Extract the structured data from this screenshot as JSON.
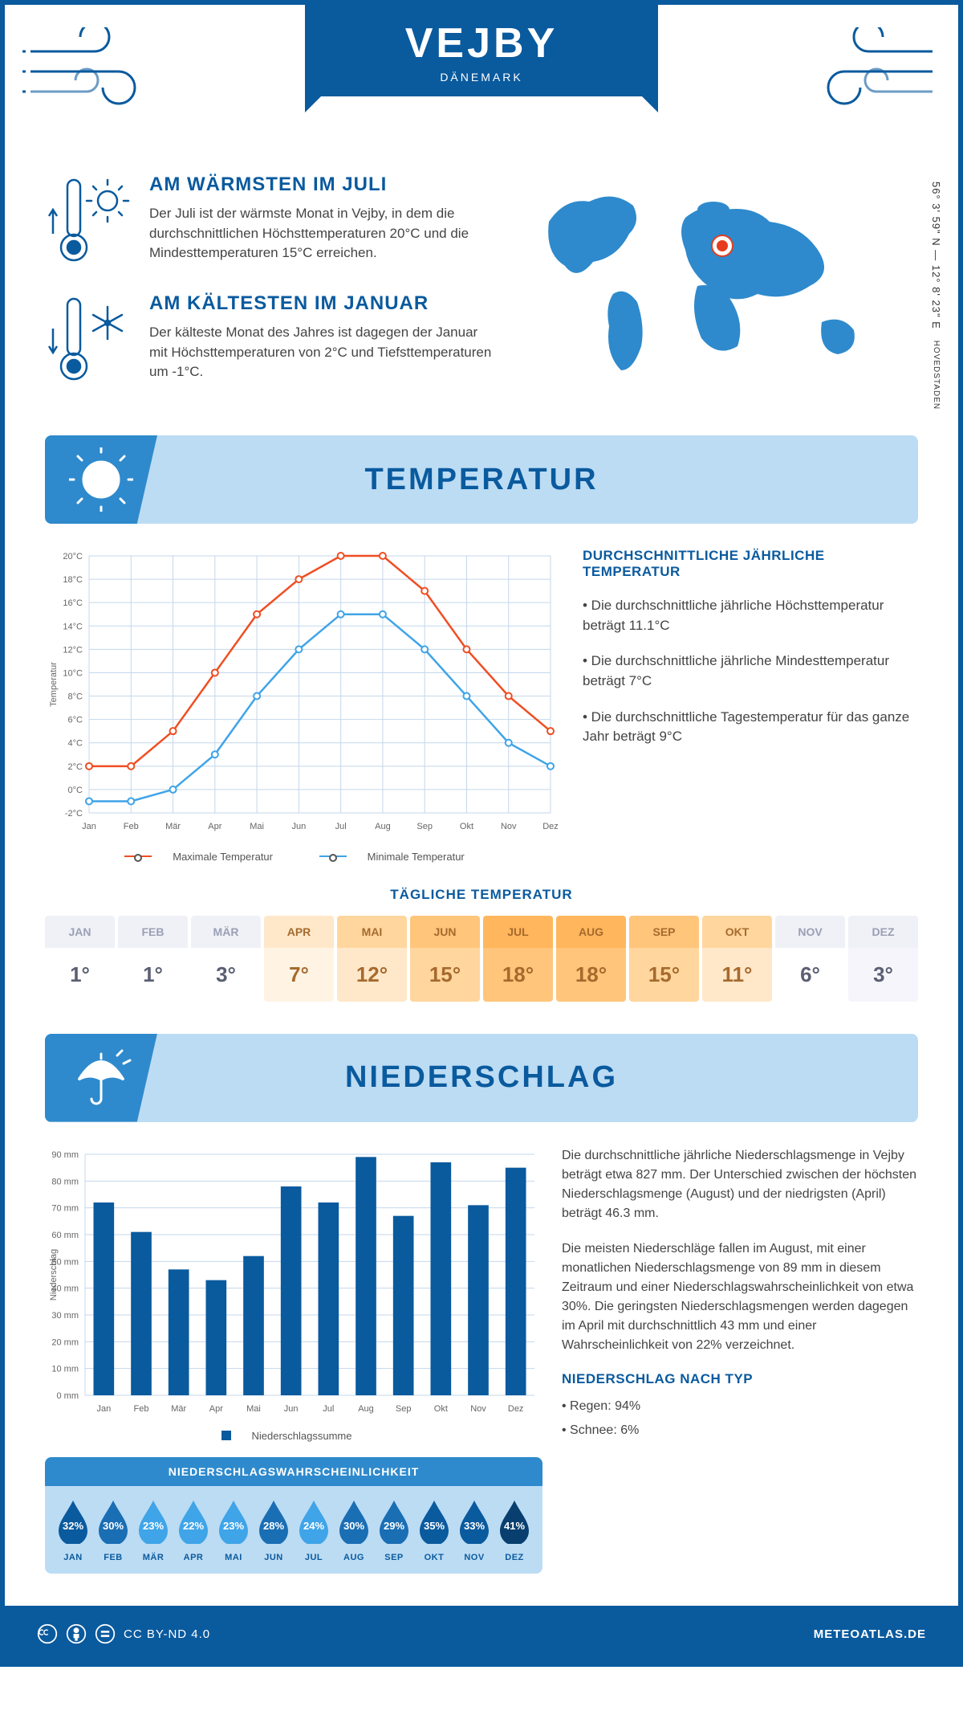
{
  "header": {
    "city": "VEJBY",
    "country": "DÄNEMARK"
  },
  "coords": {
    "line1": "56° 3' 59\" N — 12° 8' 23\" E",
    "region": "HOVEDSTADEN"
  },
  "warm": {
    "title": "AM WÄRMSTEN IM JULI",
    "text": "Der Juli ist der wärmste Monat in Vejby, in dem die durchschnittlichen Höchsttemperaturen 20°C und die Mindesttemperaturen 15°C erreichen."
  },
  "cold": {
    "title": "AM KÄLTESTEN IM JANUAR",
    "text": "Der kälteste Monat des Jahres ist dagegen der Januar mit Höchsttemperaturen von 2°C und Tiefsttemperaturen um -1°C."
  },
  "temp_section": {
    "title": "TEMPERATUR"
  },
  "temp_chart": {
    "type": "line",
    "months": [
      "Jan",
      "Feb",
      "Mär",
      "Apr",
      "Mai",
      "Jun",
      "Jul",
      "Aug",
      "Sep",
      "Okt",
      "Nov",
      "Dez"
    ],
    "max": {
      "label": "Maximale Temperatur",
      "color": "#f04e23",
      "values": [
        2,
        2,
        5,
        10,
        15,
        18,
        20,
        20,
        17,
        12,
        8,
        5
      ]
    },
    "min": {
      "label": "Minimale Temperatur",
      "color": "#3fa4e8",
      "values": [
        -1,
        -1,
        0,
        3,
        8,
        12,
        15,
        15,
        12,
        8,
        4,
        2
      ]
    },
    "ylim": [
      -2,
      20
    ],
    "ytick_step": 2,
    "ylabel": "Temperatur",
    "grid_color": "#c4d7eb",
    "bg": "#ffffff"
  },
  "temp_facts": {
    "title": "DURCHSCHNITTLICHE JÄHRLICHE TEMPERATUR",
    "items": [
      "• Die durchschnittliche jährliche Höchsttemperatur beträgt 11.1°C",
      "• Die durchschnittliche jährliche Mindesttemperatur beträgt 7°C",
      "• Die durchschnittliche Tagestemperatur für das ganze Jahr beträgt 9°C"
    ]
  },
  "daily": {
    "title": "TÄGLICHE TEMPERATUR",
    "months": [
      "JAN",
      "FEB",
      "MÄR",
      "APR",
      "MAI",
      "JUN",
      "JUL",
      "AUG",
      "SEP",
      "OKT",
      "NOV",
      "DEZ"
    ],
    "values": [
      "1°",
      "1°",
      "3°",
      "7°",
      "12°",
      "15°",
      "18°",
      "18°",
      "15°",
      "11°",
      "6°",
      "3°"
    ],
    "head_colors": [
      "#f0f1f7",
      "#f0f1f7",
      "#f0f1f7",
      "#ffe8ca",
      "#ffd69d",
      "#ffc57a",
      "#ffb65c",
      "#ffb65c",
      "#ffc57a",
      "#ffd69d",
      "#f0f1f7",
      "#f0f1f7"
    ],
    "body_colors": [
      "#ffffff",
      "#ffffff",
      "#ffffff",
      "#fff4e4",
      "#ffe8ca",
      "#ffd69d",
      "#ffc57a",
      "#ffc57a",
      "#ffd69d",
      "#ffe8ca",
      "#ffffff",
      "#f6f5fb"
    ],
    "text_color_head": "#9aa0b4",
    "text_color_warm": "#a66a2e"
  },
  "prec_section": {
    "title": "NIEDERSCHLAG"
  },
  "prec_chart": {
    "type": "bar",
    "months": [
      "Jan",
      "Feb",
      "Mär",
      "Apr",
      "Mai",
      "Jun",
      "Jul",
      "Aug",
      "Sep",
      "Okt",
      "Nov",
      "Dez"
    ],
    "values": [
      72,
      61,
      47,
      43,
      52,
      78,
      72,
      89,
      67,
      87,
      71,
      85
    ],
    "bar_color": "#0a5a9e",
    "ylim": [
      0,
      90
    ],
    "ytick_step": 10,
    "ylabel": "Niederschlag",
    "grid_color": "#c4d7eb",
    "legend": "Niederschlagssumme"
  },
  "prec_text": {
    "p1": "Die durchschnittliche jährliche Niederschlagsmenge in Vejby beträgt etwa 827 mm. Der Unterschied zwischen der höchsten Niederschlagsmenge (August) und der niedrigsten (April) beträgt 46.3 mm.",
    "p2": "Die meisten Niederschläge fallen im August, mit einer monatlichen Niederschlagsmenge von 89 mm in diesem Zeitraum und einer Niederschlagswahrscheinlichkeit von etwa 30%. Die geringsten Niederschlagsmengen werden dagegen im April mit durchschnittlich 43 mm und einer Wahrscheinlichkeit von 22% verzeichnet.",
    "type_title": "NIEDERSCHLAG NACH TYP",
    "types": [
      "• Regen: 94%",
      "• Schnee: 6%"
    ]
  },
  "prob": {
    "title": "NIEDERSCHLAGSWAHRSCHEINLICHKEIT",
    "months": [
      "JAN",
      "FEB",
      "MÄR",
      "APR",
      "MAI",
      "JUN",
      "JUL",
      "AUG",
      "SEP",
      "OKT",
      "NOV",
      "DEZ"
    ],
    "pct": [
      "32%",
      "30%",
      "23%",
      "22%",
      "23%",
      "28%",
      "24%",
      "30%",
      "29%",
      "35%",
      "33%",
      "41%"
    ],
    "colors": [
      "#0a5a9e",
      "#1a6eb4",
      "#3fa4e8",
      "#3fa4e8",
      "#3fa4e8",
      "#1a6eb4",
      "#3fa4e8",
      "#1a6eb4",
      "#1a6eb4",
      "#0a5a9e",
      "#0a5a9e",
      "#083f6f"
    ]
  },
  "footer": {
    "license": "CC BY-ND 4.0",
    "site": "METEOATLAS.DE"
  }
}
